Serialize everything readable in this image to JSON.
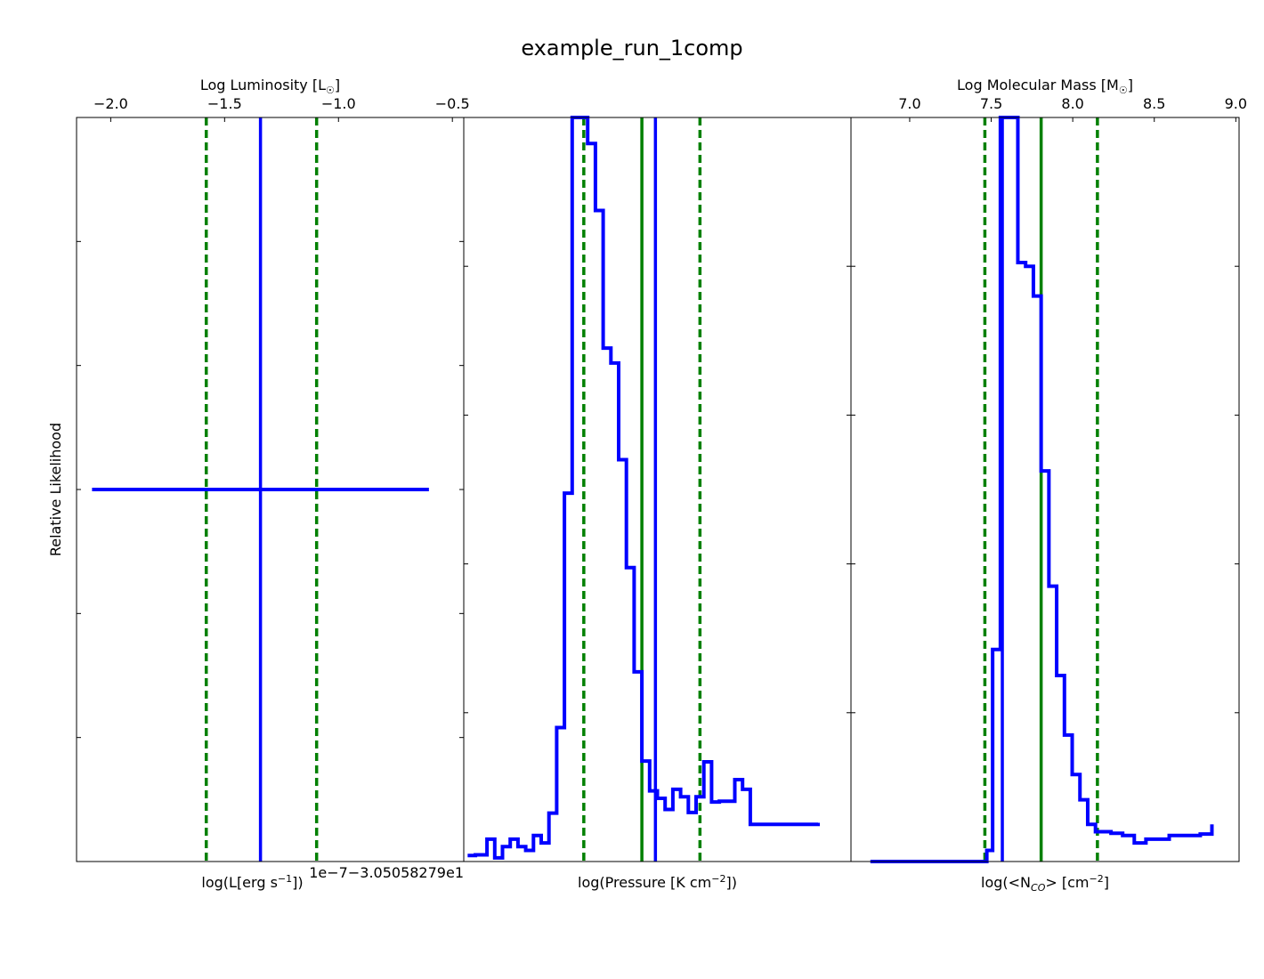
{
  "figure": {
    "title": "example_run_1comp",
    "ylabel": "Relative Likelihood"
  },
  "colors": {
    "histogram": "#0000ff",
    "median_line": "#008000",
    "interval_lines": "#008000",
    "axes": "#000000"
  },
  "chart_data": [
    {
      "type": "line",
      "panel": "luminosity",
      "top_axis": {
        "label": "Log Luminosity  [L☉]",
        "label_main": "Log Luminosity  [L",
        "label_sub": "☉",
        "label_end": "]",
        "range": [
          -2.15,
          -0.45
        ],
        "ticks": [
          -2.0,
          -1.5,
          -1.0,
          -0.5
        ],
        "tick_labels": [
          "−2.0",
          "−1.5",
          "−1.0",
          "−0.5"
        ]
      },
      "xlabel": "log(L[erg s⁻¹])",
      "xlabel_main": "log(L[erg s",
      "xlabel_sup": "−1",
      "xlabel_end": "])",
      "offset_text": "1e−7−3.05058279e1",
      "xlim": [
        0,
        1
      ],
      "ylim": [
        0,
        1
      ],
      "series": [
        {
          "x": [
            0.04,
            0.91
          ],
          "y": [
            0.5,
            0.5
          ]
        }
      ],
      "vlines": [
        {
          "x": 0.475,
          "style": "solid",
          "role": "histogram"
        },
        {
          "x": 0.335,
          "style": "dashed",
          "role": "interval"
        },
        {
          "x": 0.62,
          "style": "dashed",
          "role": "interval"
        }
      ]
    },
    {
      "type": "line",
      "panel": "pressure",
      "xlabel": "log(Pressure [K cm⁻²])",
      "xlabel_main": "log(Pressure [K cm",
      "xlabel_sup": "−2",
      "xlabel_end": "])",
      "xlim": [
        0,
        1
      ],
      "ylim": [
        0,
        1
      ],
      "series": [
        {
          "x": [
            0.01,
            0.03,
            0.06,
            0.08,
            0.1,
            0.12,
            0.14,
            0.16,
            0.18,
            0.2,
            0.22,
            0.24,
            0.26,
            0.28,
            0.3,
            0.32,
            0.34,
            0.36,
            0.38,
            0.4,
            0.42,
            0.44,
            0.46,
            0.48,
            0.5,
            0.52,
            0.54,
            0.56,
            0.58,
            0.6,
            0.62,
            0.64,
            0.66,
            0.68,
            0.7,
            0.72,
            0.74,
            0.76,
            0.78,
            0.8,
            0.82,
            0.84,
            0.86,
            0.88,
            0.9,
            0.915
          ],
          "y": [
            0.008,
            0.009,
            0.03,
            0.005,
            0.02,
            0.03,
            0.02,
            0.015,
            0.035,
            0.025,
            0.065,
            0.18,
            0.495,
            1.0,
            1.0,
            0.965,
            0.875,
            0.69,
            0.67,
            0.54,
            0.395,
            0.255,
            0.135,
            0.095,
            0.085,
            0.07,
            0.097,
            0.087,
            0.066,
            0.087,
            0.134,
            0.08,
            0.081,
            0.081,
            0.11,
            0.097,
            0.05,
            0.05,
            0.05,
            0.05,
            0.05,
            0.05,
            0.05,
            0.05,
            0.05,
            0.052
          ]
        }
      ],
      "vlines": [
        {
          "x": 0.31,
          "style": "dashed",
          "role": "interval"
        },
        {
          "x": 0.46,
          "style": "solid",
          "role": "median"
        },
        {
          "x": 0.495,
          "style": "solid",
          "role": "histogram"
        },
        {
          "x": 0.61,
          "style": "dashed",
          "role": "interval"
        }
      ]
    },
    {
      "type": "line",
      "panel": "column_density",
      "top_axis": {
        "label": "Log Molecular Mass [M☉]",
        "label_main": "Log Molecular Mass [M",
        "label_sub": "☉",
        "label_end": "]",
        "range": [
          6.64,
          9.02
        ],
        "ticks": [
          7.0,
          7.5,
          8.0,
          8.5,
          9.0
        ],
        "tick_labels": [
          "7.0",
          "7.5",
          "8.0",
          "8.5",
          "9.0"
        ]
      },
      "xlabel": "log(<N_CO> [cm⁻²])",
      "xlabel_main": "log(<N",
      "xlabel_sub": "CO",
      "xlabel_mid": "> [cm",
      "xlabel_sup": "−2",
      "xlabel_end": "]",
      "xlim": [
        0,
        1
      ],
      "ylim": [
        0,
        1
      ],
      "series": [
        {
          "x": [
            0.05,
            0.33,
            0.35,
            0.365,
            0.385,
            0.4,
            0.415,
            0.43,
            0.45,
            0.47,
            0.49,
            0.51,
            0.53,
            0.55,
            0.57,
            0.59,
            0.61,
            0.63,
            0.65,
            0.67,
            0.7,
            0.73,
            0.76,
            0.79,
            0.82,
            0.85,
            0.88,
            0.9,
            0.93
          ],
          "y": [
            0.0,
            0.0,
            0.015,
            0.285,
            1.0,
            1.0,
            1.0,
            0.805,
            0.8,
            0.76,
            0.525,
            0.37,
            0.25,
            0.17,
            0.117,
            0.083,
            0.05,
            0.04,
            0.04,
            0.038,
            0.035,
            0.025,
            0.03,
            0.03,
            0.035,
            0.035,
            0.035,
            0.037,
            0.05
          ]
        }
      ],
      "vlines": [
        {
          "x": 0.345,
          "style": "dashed",
          "role": "interval"
        },
        {
          "x": 0.39,
          "style": "solid",
          "role": "histogram"
        },
        {
          "x": 0.49,
          "style": "solid",
          "role": "median"
        },
        {
          "x": 0.635,
          "style": "dashed",
          "role": "interval"
        }
      ]
    }
  ]
}
